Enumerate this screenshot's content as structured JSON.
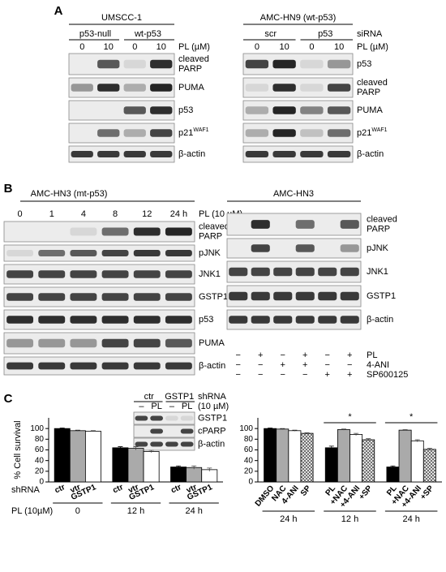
{
  "panel_a": {
    "label": "A",
    "left": {
      "title": "UMSCC-1",
      "groups": [
        "p53-null",
        "wt-p53"
      ],
      "doses": [
        0,
        10,
        0,
        10
      ],
      "dose_label": "PL (µM)",
      "rows": [
        {
          "lines": [
            "cleaved",
            "PARP"
          ]
        },
        "PUMA",
        "p53",
        {
          "text": "p21",
          "sup": "WAF1"
        },
        "β-actin"
      ]
    },
    "right": {
      "title": "AMC-HN9 (wt-p53)",
      "groups": [
        "scr",
        "p53"
      ],
      "group_label": "siRNA",
      "doses": [
        0,
        10,
        0,
        10
      ],
      "dose_label": "PL (µM)",
      "rows": [
        "p53",
        {
          "lines": [
            "cleaved",
            "PARP"
          ]
        },
        "PUMA",
        {
          "text": "p21",
          "sup": "WAF1"
        },
        "β-actin"
      ]
    }
  },
  "panel_b": {
    "label": "B",
    "left": {
      "title": "AMC-HN3 (mt-p53)",
      "lanes": [
        0,
        1,
        4,
        8,
        12,
        "24 h"
      ],
      "dose_label": "PL (10 µM)",
      "rows": [
        {
          "lines": [
            "cleaved",
            "PARP"
          ]
        },
        "pJNK",
        "JNK1",
        "GSTP1",
        "p53",
        "PUMA",
        "β-actin"
      ]
    },
    "right": {
      "title": "AMC-HN3",
      "rows": [
        {
          "lines": [
            "cleaved",
            "PARP"
          ]
        },
        "pJNK",
        "JNK1",
        "GSTP1",
        "β-actin"
      ],
      "treatments": [
        {
          "name": "PL",
          "signs": [
            "−",
            "+",
            "−",
            "+",
            "−",
            "+"
          ]
        },
        {
          "name": "4-ANI",
          "signs": [
            "−",
            "−",
            "+",
            "+",
            "−",
            "−"
          ]
        },
        {
          "name": "SP600125",
          "signs": [
            "−",
            "−",
            "−",
            "−",
            "+",
            "+"
          ]
        }
      ]
    }
  },
  "panel_c": {
    "label": "C",
    "inset": {
      "groups": [
        "ctr",
        "GSTP1"
      ],
      "group_label": "shRNA",
      "doses": [
        "–",
        "PL",
        "–",
        "PL"
      ],
      "dose_label": "(10 µM)",
      "rows": [
        "GSTP1",
        "cPARP",
        "β-actin"
      ]
    }
  },
  "chart_data": [
    {
      "type": "bar",
      "y_label": "% Cell survival",
      "ylim": [
        0,
        120
      ],
      "yticks": [
        0,
        20,
        40,
        60,
        80,
        100
      ],
      "groups": [
        0,
        "12 h",
        "24 h"
      ],
      "group_row_label": "PL (10µM)",
      "bar_row_label": "shRNA",
      "bar_labels": [
        [
          "ctr",
          "vtr",
          "GSTP1"
        ],
        [
          "ctr",
          "vtr",
          "GSTP1"
        ],
        [
          "ctr",
          "vtr",
          "GSTP1"
        ]
      ],
      "series": [
        {
          "color": "#000000",
          "values": [
            100,
            64,
            28
          ],
          "errors": [
            1,
            2,
            2
          ]
        },
        {
          "color": "#aaaaaa",
          "values": [
            96,
            63,
            27
          ],
          "errors": [
            1,
            3,
            3
          ]
        },
        {
          "color": "#ffffff",
          "values": [
            95,
            57,
            23
          ],
          "errors": [
            1,
            2,
            3
          ]
        }
      ]
    },
    {
      "type": "bar",
      "ylim": [
        0,
        120
      ],
      "yticks": [
        0,
        20,
        40,
        60,
        80,
        100
      ],
      "groups": [
        "24 h",
        "12 h",
        "24 h"
      ],
      "annotations": [
        "*",
        "*"
      ],
      "bar_labels": [
        [
          "DMSO",
          "NAC",
          "4-ANI",
          "SP"
        ],
        [
          "PL",
          "+NAC",
          "+4-ANI",
          "+SP"
        ],
        [
          "PL",
          "+NAC",
          "+4-ANI",
          "+SP"
        ]
      ],
      "series": [
        {
          "color": "#000000",
          "values": [
            100,
            64,
            28
          ],
          "errors": [
            1,
            3,
            2
          ]
        },
        {
          "color": "#aaaaaa",
          "values": [
            99,
            98,
            97
          ],
          "errors": [
            1,
            1,
            1
          ]
        },
        {
          "color": "#ffffff",
          "values": [
            96,
            89,
            77
          ],
          "errors": [
            1,
            2,
            2
          ]
        },
        {
          "color": "#555555",
          "pattern": "crosshatch",
          "values": [
            91,
            79,
            61
          ],
          "errors": [
            1,
            2,
            2
          ]
        }
      ]
    }
  ]
}
